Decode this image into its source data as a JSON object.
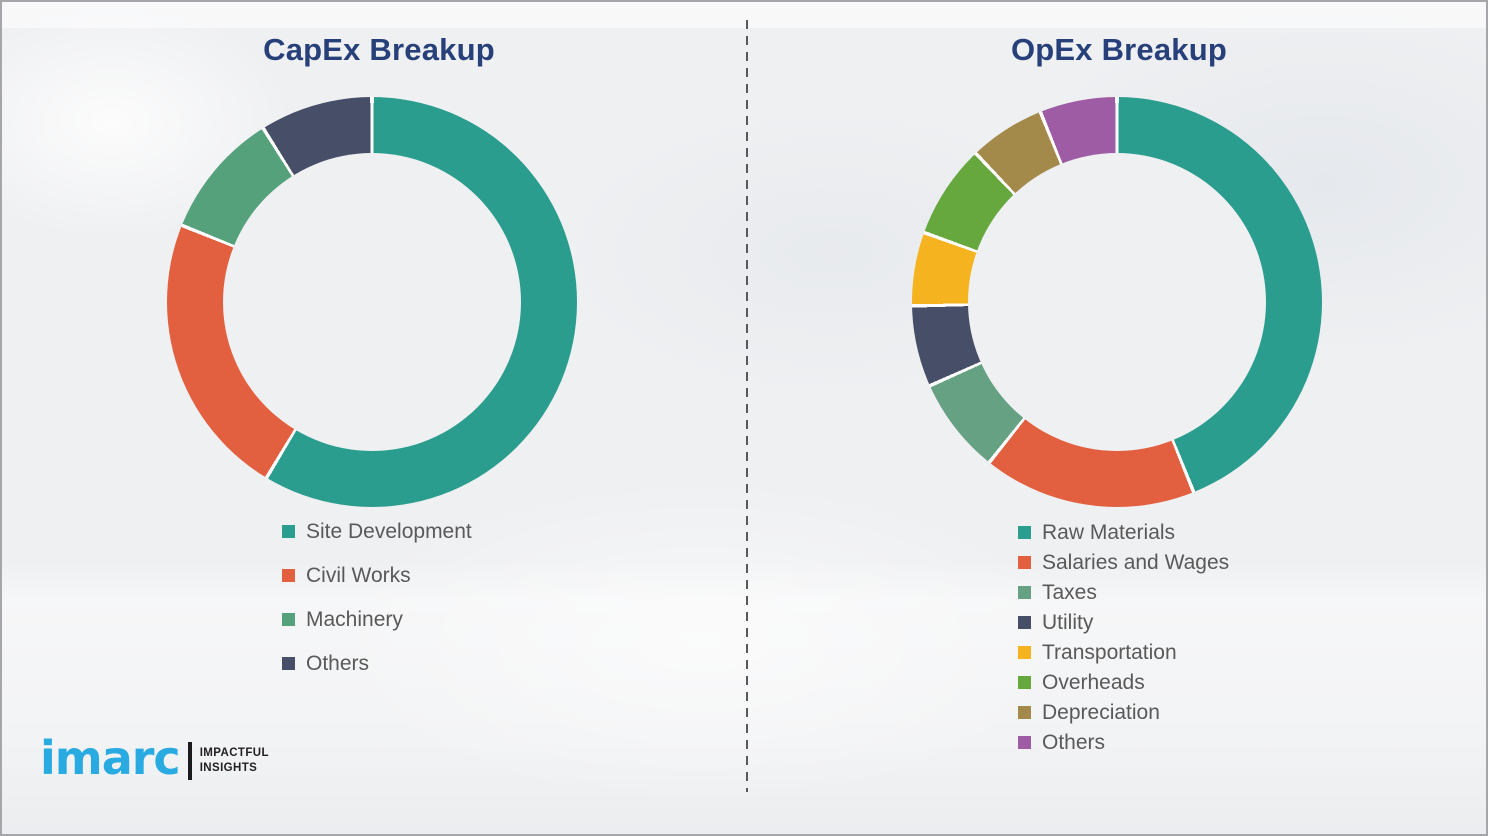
{
  "page": {
    "background_color": "#eff0f2",
    "border_color": "#a4a6a9",
    "divider_color": "#58595b",
    "legend_text_color": "#595959"
  },
  "chart_data": [
    {
      "id": "capex",
      "type": "pie",
      "subtype": "donut",
      "title": "CapEx Breakup",
      "title_color": "#27407a",
      "legend_position": "below",
      "unit": "percent_estimated_from_arc_angles",
      "categories": [
        "Site Development",
        "Civil Works",
        "Machinery",
        "Others"
      ],
      "values": [
        58.6,
        22.5,
        10.0,
        8.9
      ],
      "colors": [
        "#2a9d8f",
        "#e2603f",
        "#55a17c",
        "#474e68"
      ]
    },
    {
      "id": "opex",
      "type": "pie",
      "subtype": "donut",
      "title": "OpEx Breakup",
      "title_color": "#27407a",
      "legend_position": "below",
      "unit": "percent_estimated_from_arc_angles",
      "categories": [
        "Raw Materials",
        "Salaries and Wages",
        "Taxes",
        "Utility",
        "Transportation",
        "Overheads",
        "Depreciation",
        "Others"
      ],
      "values": [
        43.9,
        16.8,
        7.6,
        6.4,
        5.8,
        7.4,
        6.0,
        6.1
      ],
      "colors": [
        "#2a9d8f",
        "#e2603f",
        "#66a184",
        "#474e68",
        "#f5b31f",
        "#67a83e",
        "#a3894a",
        "#9d5ca3"
      ]
    }
  ],
  "logo": {
    "brand": "imarc",
    "tagline1": "IMPACTFUL",
    "tagline2": "INSIGHTS",
    "brand_color": "#29abe2",
    "tagline_color": "#232022"
  }
}
